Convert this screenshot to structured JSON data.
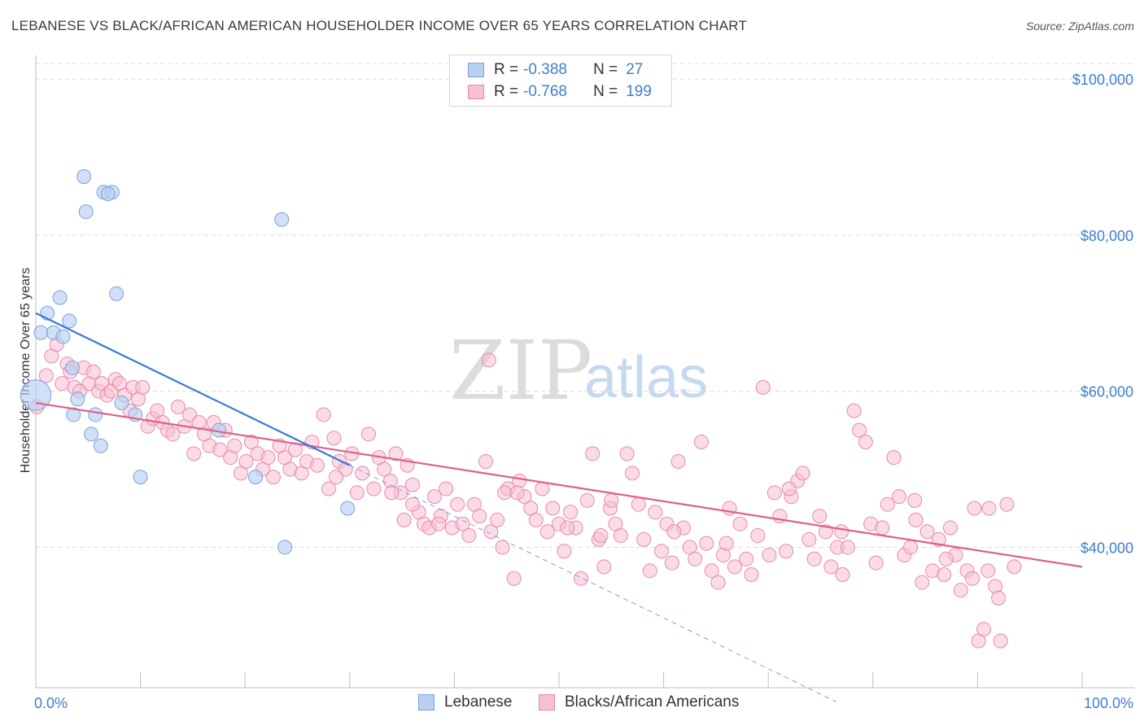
{
  "title": "LEBANESE VS BLACK/AFRICAN AMERICAN HOUSEHOLDER INCOME OVER 65 YEARS CORRELATION CHART",
  "source": "Source: ZipAtlas.com",
  "watermark": {
    "zip": "ZIP",
    "atlas": "atlas"
  },
  "legend": {
    "r_label": "R =",
    "n_label": "N =",
    "rows": [
      {
        "r": "-0.388",
        "n": "27",
        "fill": "#b8d0f2",
        "stroke": "#7aa3dc"
      },
      {
        "r": "-0.768",
        "n": "199",
        "fill": "#f7c0d2",
        "stroke": "#e88aab"
      }
    ]
  },
  "bottom_legend": [
    {
      "label": "Lebanese",
      "fill": "#b8d0f2",
      "stroke": "#7aa3dc"
    },
    {
      "label": "Blacks/African Americans",
      "fill": "#f7c0d2",
      "stroke": "#e88aab"
    }
  ],
  "chart_data": {
    "type": "scatter",
    "title": "LEBANESE VS BLACK/AFRICAN AMERICAN HOUSEHOLDER INCOME OVER 65 YEARS CORRELATION CHART",
    "xlabel": "",
    "ylabel": "Householder Income Over 65 years",
    "xlim": [
      0,
      100
    ],
    "ylim": [
      22000,
      102000
    ],
    "x_tick_labels": [
      "0.0%",
      "100.0%"
    ],
    "y_ticks": [
      40000,
      60000,
      80000,
      100000
    ],
    "y_tick_labels": [
      "$40,000",
      "$60,000",
      "$80,000",
      "$100,000"
    ],
    "grid": "horizontal dashed",
    "colors": {
      "lebanese": "#5b8fd6",
      "lebanese_fill": "#b8d0f2",
      "black": "#e05f8e",
      "black_fill": "#f7c0d2",
      "axis_text": "#3f7fcf"
    },
    "series": [
      {
        "name": "Lebanese",
        "trend": {
          "x": [
            0,
            30
          ],
          "y": [
            70000,
            50500
          ]
        },
        "trend_extension": {
          "x": [
            30,
            76.5
          ],
          "y": [
            50500,
            20200
          ]
        },
        "points": [
          [
            0.0,
            59500,
            2.2
          ],
          [
            0.5,
            67500,
            1
          ],
          [
            1.1,
            70000,
            1
          ],
          [
            1.7,
            67500,
            1
          ],
          [
            2.3,
            72000,
            1
          ],
          [
            3.2,
            69000,
            1
          ],
          [
            3.5,
            63000,
            1
          ],
          [
            3.6,
            57000,
            1
          ],
          [
            4.0,
            59000,
            1
          ],
          [
            4.6,
            87500,
            1
          ],
          [
            4.8,
            83000,
            1
          ],
          [
            5.3,
            54500,
            1
          ],
          [
            5.7,
            57000,
            1
          ],
          [
            6.2,
            53000,
            1
          ],
          [
            6.5,
            85500,
            1
          ],
          [
            7.3,
            85500,
            1
          ],
          [
            7.7,
            72500,
            1
          ],
          [
            8.2,
            58500,
            1
          ],
          [
            9.5,
            57000,
            1
          ],
          [
            10.0,
            49000,
            1
          ],
          [
            17.5,
            55000,
            1
          ],
          [
            21.0,
            49000,
            1
          ],
          [
            23.5,
            82000,
            1
          ],
          [
            23.8,
            40000,
            1
          ],
          [
            29.8,
            45000,
            1
          ],
          [
            2.6,
            67000,
            1
          ],
          [
            6.9,
            85300,
            1
          ]
        ]
      },
      {
        "name": "Blacks/African Americans",
        "trend": {
          "x": [
            0,
            100
          ],
          "y": [
            58500,
            37500
          ]
        },
        "points": [
          [
            0.1,
            58000
          ],
          [
            1.0,
            62000
          ],
          [
            1.5,
            64500
          ],
          [
            2.0,
            66000
          ],
          [
            2.5,
            61000
          ],
          [
            3.0,
            63500
          ],
          [
            3.3,
            62500
          ],
          [
            3.7,
            60500
          ],
          [
            4.2,
            60000
          ],
          [
            4.6,
            63000
          ],
          [
            5.1,
            61000
          ],
          [
            5.5,
            62500
          ],
          [
            6.0,
            60000
          ],
          [
            6.3,
            61000
          ],
          [
            6.8,
            59500
          ],
          [
            7.2,
            60000
          ],
          [
            7.6,
            61500
          ],
          [
            8.0,
            61000
          ],
          [
            8.5,
            59500
          ],
          [
            9.0,
            57500
          ],
          [
            9.3,
            60500
          ],
          [
            9.8,
            59000
          ],
          [
            10.2,
            60500
          ],
          [
            10.7,
            55500
          ],
          [
            11.2,
            56500
          ],
          [
            11.6,
            57500
          ],
          [
            12.1,
            56000
          ],
          [
            12.6,
            55000
          ],
          [
            13.1,
            54500
          ],
          [
            13.6,
            58000
          ],
          [
            14.2,
            55500
          ],
          [
            14.7,
            57000
          ],
          [
            15.1,
            52000
          ],
          [
            15.6,
            56000
          ],
          [
            16.1,
            54500
          ],
          [
            16.6,
            53000
          ],
          [
            17.0,
            56000
          ],
          [
            17.6,
            52500
          ],
          [
            18.1,
            55000
          ],
          [
            18.6,
            51500
          ],
          [
            19.0,
            53000
          ],
          [
            19.6,
            49500
          ],
          [
            20.1,
            51000
          ],
          [
            20.6,
            53500
          ],
          [
            21.2,
            52000
          ],
          [
            21.7,
            50000
          ],
          [
            22.2,
            51500
          ],
          [
            22.7,
            49000
          ],
          [
            23.3,
            53000
          ],
          [
            23.8,
            51500
          ],
          [
            24.3,
            50000
          ],
          [
            24.8,
            52500
          ],
          [
            25.4,
            49500
          ],
          [
            25.9,
            51000
          ],
          [
            26.4,
            53500
          ],
          [
            26.9,
            50500
          ],
          [
            27.5,
            57000
          ],
          [
            28.0,
            47500
          ],
          [
            28.5,
            54000
          ],
          [
            29.0,
            51000
          ],
          [
            29.6,
            50000
          ],
          [
            30.2,
            52000
          ],
          [
            30.7,
            47000
          ],
          [
            31.2,
            49500
          ],
          [
            31.8,
            54500
          ],
          [
            32.3,
            47500
          ],
          [
            32.8,
            51500
          ],
          [
            33.3,
            50000
          ],
          [
            33.9,
            48500
          ],
          [
            34.4,
            52000
          ],
          [
            34.9,
            47000
          ],
          [
            35.5,
            50500
          ],
          [
            36.0,
            48000
          ],
          [
            36.6,
            44500
          ],
          [
            37.1,
            43000
          ],
          [
            37.6,
            42500
          ],
          [
            38.1,
            46500
          ],
          [
            38.7,
            44000
          ],
          [
            39.2,
            47500
          ],
          [
            39.8,
            42500
          ],
          [
            40.3,
            45500
          ],
          [
            40.8,
            43000
          ],
          [
            41.4,
            41500
          ],
          [
            41.9,
            45500
          ],
          [
            42.4,
            44000
          ],
          [
            43.0,
            51000
          ],
          [
            43.5,
            42000
          ],
          [
            44.1,
            43500
          ],
          [
            44.6,
            40000
          ],
          [
            45.1,
            47500
          ],
          [
            45.7,
            36000
          ],
          [
            46.2,
            48500
          ],
          [
            46.7,
            46500
          ],
          [
            47.3,
            45000
          ],
          [
            47.8,
            43500
          ],
          [
            48.4,
            47500
          ],
          [
            48.9,
            42000
          ],
          [
            49.4,
            45000
          ],
          [
            50.0,
            43000
          ],
          [
            50.5,
            39500
          ],
          [
            51.1,
            44500
          ],
          [
            51.6,
            42500
          ],
          [
            52.1,
            36000
          ],
          [
            52.7,
            46000
          ],
          [
            53.2,
            52000
          ],
          [
            53.8,
            41000
          ],
          [
            54.3,
            37500
          ],
          [
            54.9,
            45000
          ],
          [
            55.4,
            43000
          ],
          [
            55.9,
            41500
          ],
          [
            56.5,
            52000
          ],
          [
            57.0,
            49500
          ],
          [
            57.6,
            45500
          ],
          [
            58.1,
            41000
          ],
          [
            58.7,
            37000
          ],
          [
            59.2,
            44500
          ],
          [
            59.8,
            39500
          ],
          [
            60.3,
            43000
          ],
          [
            60.8,
            38000
          ],
          [
            61.4,
            51000
          ],
          [
            61.9,
            42500
          ],
          [
            62.5,
            40000
          ],
          [
            63.0,
            38500
          ],
          [
            63.6,
            53500
          ],
          [
            64.1,
            40500
          ],
          [
            64.6,
            37000
          ],
          [
            65.2,
            35500
          ],
          [
            65.7,
            39000
          ],
          [
            66.3,
            45000
          ],
          [
            66.8,
            37500
          ],
          [
            67.3,
            43000
          ],
          [
            67.9,
            38500
          ],
          [
            68.4,
            36500
          ],
          [
            69.0,
            41500
          ],
          [
            69.5,
            60500
          ],
          [
            70.1,
            39000
          ],
          [
            70.6,
            47000
          ],
          [
            71.1,
            44000
          ],
          [
            71.7,
            39500
          ],
          [
            72.2,
            46500
          ],
          [
            72.8,
            48500
          ],
          [
            73.3,
            49500
          ],
          [
            73.9,
            41000
          ],
          [
            74.4,
            38500
          ],
          [
            74.9,
            44000
          ],
          [
            75.5,
            42000
          ],
          [
            76.0,
            37500
          ],
          [
            76.6,
            40000
          ],
          [
            77.1,
            36500
          ],
          [
            77.6,
            40000
          ],
          [
            78.2,
            57500
          ],
          [
            78.7,
            55000
          ],
          [
            79.3,
            53500
          ],
          [
            79.8,
            43000
          ],
          [
            80.3,
            38000
          ],
          [
            80.9,
            42500
          ],
          [
            81.4,
            45500
          ],
          [
            82.0,
            51500
          ],
          [
            82.5,
            46500
          ],
          [
            83.0,
            39000
          ],
          [
            83.6,
            40000
          ],
          [
            84.1,
            43500
          ],
          [
            84.7,
            35500
          ],
          [
            85.2,
            42000
          ],
          [
            85.7,
            37000
          ],
          [
            86.3,
            41000
          ],
          [
            86.8,
            36500
          ],
          [
            87.4,
            42500
          ],
          [
            87.9,
            39000
          ],
          [
            88.4,
            34500
          ],
          [
            89.0,
            37000
          ],
          [
            89.5,
            36000
          ],
          [
            90.1,
            28000
          ],
          [
            90.6,
            29500
          ],
          [
            91.1,
            45000
          ],
          [
            91.7,
            35000
          ],
          [
            92.2,
            28000
          ],
          [
            92.8,
            45500
          ],
          [
            28.7,
            49000
          ],
          [
            34.0,
            47000
          ],
          [
            44.8,
            47000
          ],
          [
            50.8,
            42500
          ],
          [
            35.2,
            43500
          ],
          [
            55.0,
            46000
          ],
          [
            61.0,
            42000
          ],
          [
            36.0,
            45500
          ],
          [
            38.5,
            43000
          ],
          [
            46.0,
            47000
          ],
          [
            54.0,
            41500
          ],
          [
            66.0,
            40500
          ],
          [
            72.0,
            47500
          ],
          [
            77.0,
            42000
          ],
          [
            84.0,
            46000
          ],
          [
            87.0,
            38500
          ],
          [
            89.7,
            45000
          ],
          [
            91.0,
            37000
          ],
          [
            92.0,
            33500
          ],
          [
            93.5,
            37500
          ],
          [
            43.3,
            64000
          ]
        ]
      }
    ]
  }
}
